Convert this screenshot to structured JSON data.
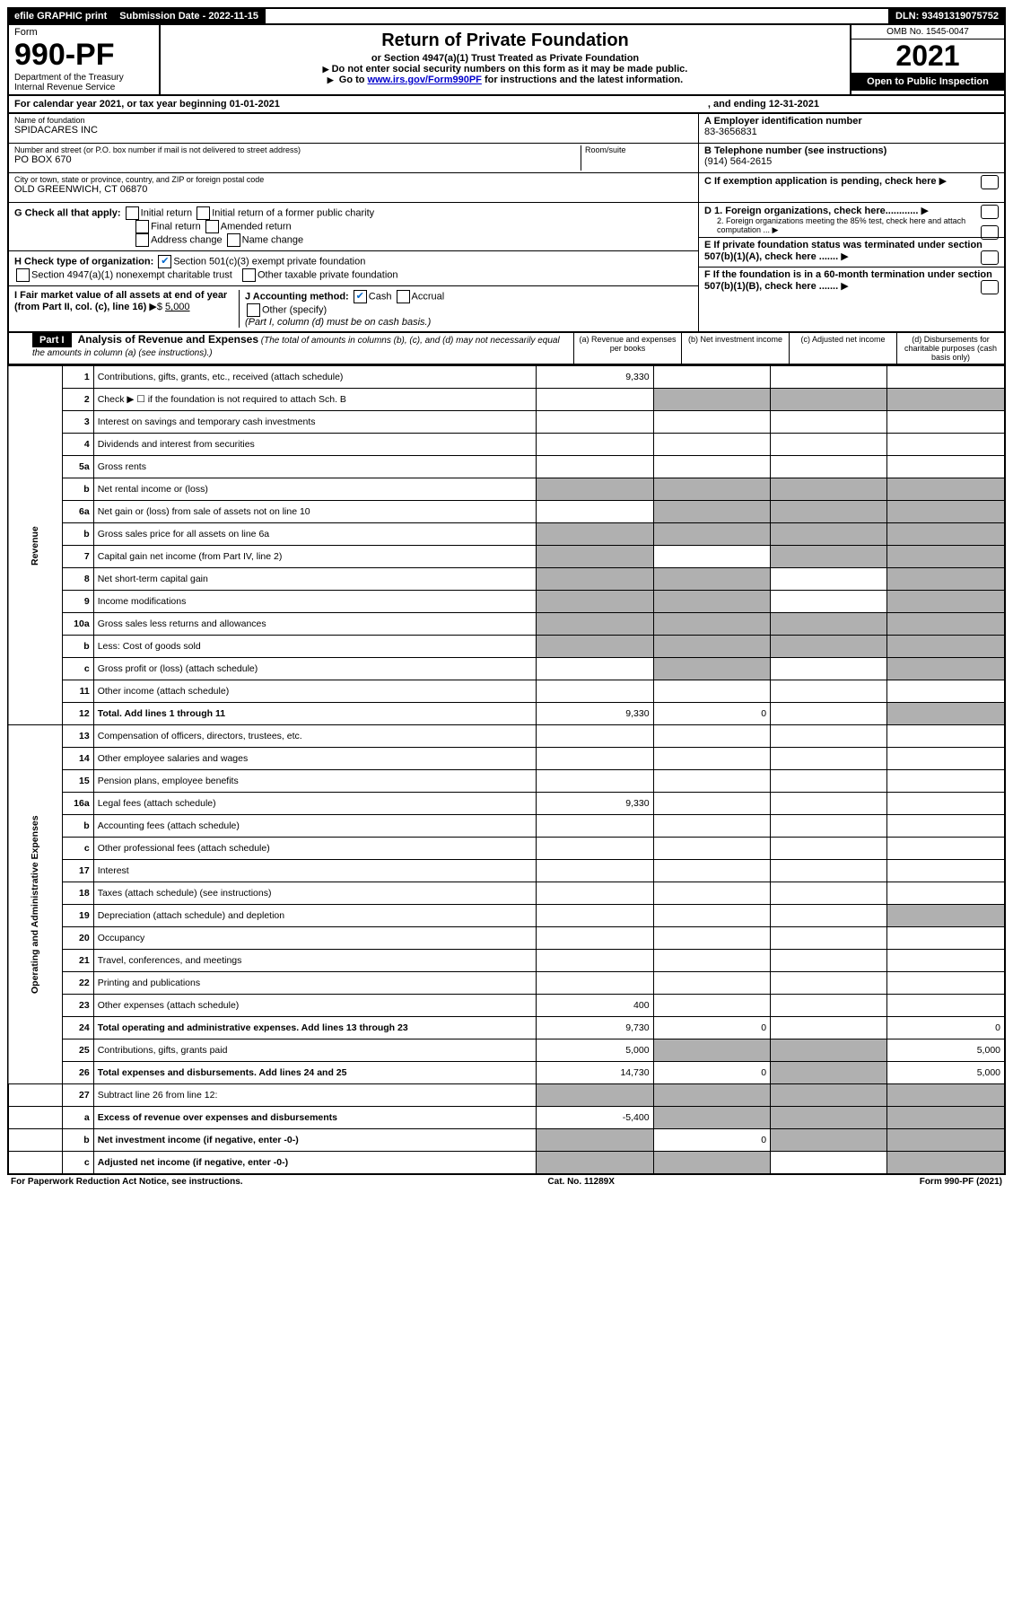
{
  "topbar": {
    "efile": "efile GRAPHIC print",
    "submission_label": "Submission Date - 2022-11-15",
    "dln": "DLN: 93491319075752"
  },
  "header": {
    "form_label": "Form",
    "form_num": "990-PF",
    "dept1": "Department of the Treasury",
    "dept2": "Internal Revenue Service",
    "title": "Return of Private Foundation",
    "subtitle": "or Section 4947(a)(1) Trust Treated as Private Foundation",
    "note1": "Do not enter social security numbers on this form as it may be made public.",
    "note2_pre": "Go to ",
    "note2_link": "www.irs.gov/Form990PF",
    "note2_post": " for instructions and the latest information.",
    "omb": "OMB No. 1545-0047",
    "year": "2021",
    "open": "Open to Public Inspection"
  },
  "calyear": {
    "pre": "For calendar year 2021, or tax year beginning 01-01-2021",
    "mid": ", and ending 12-31-2021"
  },
  "info": {
    "name_label": "Name of foundation",
    "name": "SPIDACARES INC",
    "addr_label": "Number and street (or P.O. box number if mail is not delivered to street address)",
    "addr": "PO BOX 670",
    "room_label": "Room/suite",
    "city_label": "City or town, state or province, country, and ZIP or foreign postal code",
    "city": "OLD GREENWICH, CT  06870",
    "a_label": "A Employer identification number",
    "a_val": "83-3656831",
    "b_label": "B Telephone number (see instructions)",
    "b_val": "(914) 564-2615",
    "c_label": "C If exemption application is pending, check here",
    "d1": "D 1. Foreign organizations, check here............",
    "d2": "2. Foreign organizations meeting the 85% test, check here and attach computation ...",
    "e_label": "E  If private foundation status was terminated under section 507(b)(1)(A), check here .......",
    "f_label": "F  If the foundation is in a 60-month termination under section 507(b)(1)(B), check here .......",
    "g_label": "G Check all that apply:",
    "g_opts": [
      "Initial return",
      "Initial return of a former public charity",
      "Final return",
      "Amended return",
      "Address change",
      "Name change"
    ],
    "h_label": "H Check type of organization:",
    "h1": "Section 501(c)(3) exempt private foundation",
    "h2": "Section 4947(a)(1) nonexempt charitable trust",
    "h3": "Other taxable private foundation",
    "i_label": "I Fair market value of all assets at end of year (from Part II, col. (c), line 16)",
    "i_val": "5,000",
    "j_label": "J Accounting method:",
    "j_cash": "Cash",
    "j_accrual": "Accrual",
    "j_other": "Other (specify)",
    "j_note": "(Part I, column (d) must be on cash basis.)"
  },
  "part1": {
    "label": "Part I",
    "title": "Analysis of Revenue and Expenses",
    "title_note": "(The total of amounts in columns (b), (c), and (d) may not necessarily equal the amounts in column (a) (see instructions).)",
    "col_a": "(a)   Revenue and expenses per books",
    "col_b": "(b)   Net investment income",
    "col_c": "(c)   Adjusted net income",
    "col_d": "(d)   Disbursements for charitable purposes (cash basis only)"
  },
  "sideLabels": {
    "revenue": "Revenue",
    "expenses": "Operating and Administrative Expenses"
  },
  "rows": [
    {
      "n": "1",
      "label": "Contributions, gifts, grants, etc., received (attach schedule)",
      "a": "9,330",
      "sec": "rev"
    },
    {
      "n": "2",
      "label": "Check ▶ ☐ if the foundation is not required to attach Sch. B",
      "sec": "rev",
      "grey_bcd": true
    },
    {
      "n": "3",
      "label": "Interest on savings and temporary cash investments",
      "sec": "rev"
    },
    {
      "n": "4",
      "label": "Dividends and interest from securities",
      "sec": "rev"
    },
    {
      "n": "5a",
      "label": "Gross rents",
      "sec": "rev"
    },
    {
      "n": "b",
      "label": "Net rental income or (loss)",
      "sec": "rev",
      "grey_all": true
    },
    {
      "n": "6a",
      "label": "Net gain or (loss) from sale of assets not on line 10",
      "sec": "rev",
      "grey_bcd": true
    },
    {
      "n": "b",
      "label": "Gross sales price for all assets on line 6a",
      "sec": "rev",
      "grey_all": true
    },
    {
      "n": "7",
      "label": "Capital gain net income (from Part IV, line 2)",
      "sec": "rev",
      "grey_acd": true
    },
    {
      "n": "8",
      "label": "Net short-term capital gain",
      "sec": "rev",
      "grey_abd": true
    },
    {
      "n": "9",
      "label": "Income modifications",
      "sec": "rev",
      "grey_abd": true
    },
    {
      "n": "10a",
      "label": "Gross sales less returns and allowances",
      "sec": "rev",
      "grey_all": true
    },
    {
      "n": "b",
      "label": "Less: Cost of goods sold",
      "sec": "rev",
      "grey_all": true
    },
    {
      "n": "c",
      "label": "Gross profit or (loss) (attach schedule)",
      "sec": "rev",
      "grey_bd": true
    },
    {
      "n": "11",
      "label": "Other income (attach schedule)",
      "sec": "rev"
    },
    {
      "n": "12",
      "label": "Total. Add lines 1 through 11",
      "a": "9,330",
      "b": "0",
      "sec": "rev",
      "bold": true,
      "grey_d": true
    },
    {
      "n": "13",
      "label": "Compensation of officers, directors, trustees, etc.",
      "sec": "exp"
    },
    {
      "n": "14",
      "label": "Other employee salaries and wages",
      "sec": "exp"
    },
    {
      "n": "15",
      "label": "Pension plans, employee benefits",
      "sec": "exp"
    },
    {
      "n": "16a",
      "label": "Legal fees (attach schedule)",
      "a": "9,330",
      "sec": "exp"
    },
    {
      "n": "b",
      "label": "Accounting fees (attach schedule)",
      "sec": "exp"
    },
    {
      "n": "c",
      "label": "Other professional fees (attach schedule)",
      "sec": "exp"
    },
    {
      "n": "17",
      "label": "Interest",
      "sec": "exp"
    },
    {
      "n": "18",
      "label": "Taxes (attach schedule) (see instructions)",
      "sec": "exp"
    },
    {
      "n": "19",
      "label": "Depreciation (attach schedule) and depletion",
      "sec": "exp",
      "grey_d": true
    },
    {
      "n": "20",
      "label": "Occupancy",
      "sec": "exp"
    },
    {
      "n": "21",
      "label": "Travel, conferences, and meetings",
      "sec": "exp"
    },
    {
      "n": "22",
      "label": "Printing and publications",
      "sec": "exp"
    },
    {
      "n": "23",
      "label": "Other expenses (attach schedule)",
      "a": "400",
      "sec": "exp"
    },
    {
      "n": "24",
      "label": "Total operating and administrative expenses. Add lines 13 through 23",
      "a": "9,730",
      "b": "0",
      "d": "0",
      "sec": "exp",
      "bold": true
    },
    {
      "n": "25",
      "label": "Contributions, gifts, grants paid",
      "a": "5,000",
      "d": "5,000",
      "sec": "exp",
      "grey_bc": true
    },
    {
      "n": "26",
      "label": "Total expenses and disbursements. Add lines 24 and 25",
      "a": "14,730",
      "b": "0",
      "d": "5,000",
      "sec": "exp",
      "bold": true,
      "grey_c": true
    },
    {
      "n": "27",
      "label": "Subtract line 26 from line 12:",
      "sec": "net",
      "grey_all": true
    },
    {
      "n": "a",
      "label": "Excess of revenue over expenses and disbursements",
      "a": "-5,400",
      "sec": "net",
      "bold": true,
      "grey_bcd": true
    },
    {
      "n": "b",
      "label": "Net investment income (if negative, enter -0-)",
      "b": "0",
      "sec": "net",
      "bold": true,
      "grey_acd": true
    },
    {
      "n": "c",
      "label": "Adjusted net income (if negative, enter -0-)",
      "sec": "net",
      "bold": true,
      "grey_abd": true
    }
  ],
  "footer": {
    "left": "For Paperwork Reduction Act Notice, see instructions.",
    "mid": "Cat. No. 11289X",
    "right": "Form 990-PF (2021)"
  }
}
